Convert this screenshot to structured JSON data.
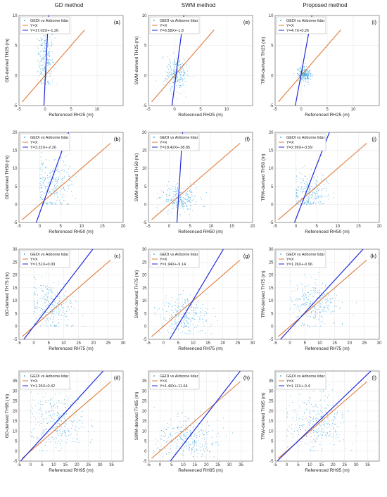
{
  "column_titles": [
    "GD method",
    "SWM method",
    "Proposed method"
  ],
  "legend": {
    "scatter": "GEDI vs Airborne lidar",
    "identity": "Y=X"
  },
  "colors": {
    "points": "#2b9fd8",
    "identity_line": "#e07b39",
    "fit_line": "#1f2bd8",
    "axes": "#555555"
  },
  "chart_data": [
    {
      "type": "scatter",
      "panel": "(a)",
      "xlabel": "Referenced RH25 (m)",
      "ylabel": "GD-derived TH25 (m)",
      "xlim": [
        -5,
        15
      ],
      "ylim": [
        -5,
        10
      ],
      "xticks": [
        -5,
        0,
        5,
        10
      ],
      "yticks": [
        -5,
        0,
        5,
        10
      ],
      "fit_label": "Y=17.02X+-1.26",
      "fit": {
        "slope": 17.02,
        "intercept": -1.26
      },
      "cloud": {
        "cx": 0.1,
        "cy": 2.8,
        "sx": 0.8,
        "sy": 2.8,
        "n": 260,
        "floor": -1.5
      }
    },
    {
      "type": "scatter",
      "panel": "(e)",
      "xlabel": "Referenced RH25 (m)",
      "ylabel": "SWM-derived TH25 (m)",
      "xlim": [
        -5,
        15
      ],
      "ylim": [
        -5,
        10
      ],
      "xticks": [
        -5,
        0,
        5,
        10
      ],
      "yticks": [
        -5,
        0,
        5,
        10
      ],
      "fit_label": "Y=6.58X+-1.8",
      "fit": {
        "slope": 6.58,
        "intercept": -1.8
      },
      "cloud": {
        "cx": 0.4,
        "cy": 0.4,
        "sx": 1.0,
        "sy": 1.5,
        "n": 260,
        "floor": -4
      }
    },
    {
      "type": "scatter",
      "panel": "(i)",
      "xlabel": "Referenced RH25 (m)",
      "ylabel": "TRW-derived TH25 (m)",
      "xlim": [
        -5,
        15
      ],
      "ylim": [
        -5,
        10
      ],
      "xticks": [
        -5,
        0,
        5,
        10
      ],
      "yticks": [
        -5,
        0,
        5,
        10
      ],
      "fit_label": "Y=4.7X+0.26",
      "fit": {
        "slope": 4.7,
        "intercept": 0.26
      },
      "cloud": {
        "cx": 0.6,
        "cy": 0.1,
        "sx": 0.7,
        "sy": 0.6,
        "n": 240,
        "floor": -2
      }
    },
    {
      "type": "scatter",
      "panel": "(b)",
      "xlabel": "Referenced RH50 (m)",
      "ylabel": "GD-derived TH50 (m)",
      "xlim": [
        -5,
        20
      ],
      "ylim": [
        -5,
        20
      ],
      "xticks": [
        -5,
        0,
        5,
        10,
        15,
        20
      ],
      "yticks": [
        -5,
        0,
        5,
        10,
        15,
        20
      ],
      "fit_label": "Y=3.22X+-2.26",
      "fit": {
        "slope": 3.22,
        "intercept": -2.26
      },
      "cloud": {
        "cx": 3.0,
        "cy": 5.5,
        "sx": 2.6,
        "sy": 4.0,
        "n": 260,
        "floor": 0
      }
    },
    {
      "type": "scatter",
      "panel": "(f)",
      "xlabel": "Referenced RH50 (m)",
      "ylabel": "SWM-derived TH50 (m)",
      "xlim": [
        -5,
        20
      ],
      "ylim": [
        -5,
        20
      ],
      "xticks": [
        -5,
        0,
        5,
        10,
        15,
        20
      ],
      "yticks": [
        -5,
        0,
        5,
        10,
        15,
        20
      ],
      "fit_label": "Y=18.42X+-38.85",
      "fit": {
        "slope": 18.42,
        "intercept": -38.85
      },
      "cloud": {
        "cx": 2.5,
        "cy": 1.5,
        "sx": 2.2,
        "sy": 1.8,
        "n": 260,
        "floor": -3
      }
    },
    {
      "type": "scatter",
      "panel": "(j)",
      "xlabel": "Referenced RH50 (m)",
      "ylabel": "TRW-derived TH50 (m)",
      "xlim": [
        -5,
        20
      ],
      "ylim": [
        -5,
        20
      ],
      "xticks": [
        -5,
        0,
        5,
        10,
        15,
        20
      ],
      "yticks": [
        -5,
        0,
        5,
        10,
        15,
        20
      ],
      "fit_label": "Y=2.99X+-3.99",
      "fit": {
        "slope": 2.99,
        "intercept": -3.99
      },
      "cloud": {
        "cx": 3.0,
        "cy": 3.0,
        "sx": 2.3,
        "sy": 2.6,
        "n": 260,
        "floor": 0
      }
    },
    {
      "type": "scatter",
      "panel": "(c)",
      "xlabel": "Referenced RH75 (m)",
      "ylabel": "GD-derived TH75 (m)",
      "xlim": [
        -5,
        30
      ],
      "ylim": [
        -5,
        30
      ],
      "xticks": [
        -5,
        0,
        5,
        10,
        15,
        20,
        25,
        30
      ],
      "yticks": [
        -5,
        0,
        5,
        10,
        15,
        20,
        25,
        30
      ],
      "fit_label": "Y=1.51X+0.09",
      "fit": {
        "slope": 1.51,
        "intercept": 0.09
      },
      "cloud": {
        "cx": 6.0,
        "cy": 8.5,
        "sx": 3.8,
        "sy": 5.0,
        "n": 280,
        "floor": 0
      }
    },
    {
      "type": "scatter",
      "panel": "(g)",
      "xlabel": "Referenced RH75 (m)",
      "ylabel": "SWM-derived TH75 (m)",
      "xlim": [
        -5,
        30
      ],
      "ylim": [
        -5,
        30
      ],
      "xticks": [
        -5,
        0,
        5,
        10,
        15,
        20,
        25,
        30
      ],
      "yticks": [
        -5,
        0,
        5,
        10,
        15,
        20,
        25,
        30
      ],
      "fit_label": "Y=1.94X+-9.14",
      "fit": {
        "slope": 1.94,
        "intercept": -9.14
      },
      "cloud": {
        "cx": 7.0,
        "cy": 4.0,
        "sx": 4.0,
        "sy": 4.0,
        "n": 280,
        "floor": -3
      }
    },
    {
      "type": "scatter",
      "panel": "(k)",
      "xlabel": "Referenced RH75 (m)",
      "ylabel": "TRW-derived TH75 (m)",
      "xlim": [
        -5,
        30
      ],
      "ylim": [
        -5,
        30
      ],
      "xticks": [
        -5,
        0,
        5,
        10,
        15,
        20,
        25,
        30
      ],
      "yticks": [
        -5,
        0,
        5,
        10,
        15,
        20,
        25,
        30
      ],
      "fit_label": "Y=1.26X+-0.96",
      "fit": {
        "slope": 1.26,
        "intercept": -0.96
      },
      "cloud": {
        "cx": 8.0,
        "cy": 9.0,
        "sx": 4.0,
        "sy": 4.6,
        "n": 280,
        "floor": 0
      }
    },
    {
      "type": "scatter",
      "panel": "(d)",
      "xlabel": "Referenced RH95 (m)",
      "ylabel": "GD-derived TH95 (m)",
      "xlim": [
        -5,
        40
      ],
      "ylim": [
        -5,
        40
      ],
      "xticks": [
        -5,
        0,
        5,
        10,
        15,
        20,
        25,
        30,
        35
      ],
      "yticks": [
        -5,
        0,
        5,
        10,
        15,
        20,
        25,
        30,
        35
      ],
      "fit_label": "Y=1.26X+0.42",
      "fit": {
        "slope": 1.26,
        "intercept": 0.42
      },
      "cloud": {
        "cx": 12.0,
        "cy": 14.0,
        "sx": 6.0,
        "sy": 7.0,
        "n": 300,
        "floor": 0
      }
    },
    {
      "type": "scatter",
      "panel": "(h)",
      "xlabel": "Referenced RH95 (m)",
      "ylabel": "SWM-derived TH95 (m)",
      "xlim": [
        -5,
        40
      ],
      "ylim": [
        -5,
        40
      ],
      "xticks": [
        -5,
        0,
        5,
        10,
        15,
        20,
        25,
        30,
        35
      ],
      "yticks": [
        -5,
        0,
        5,
        10,
        15,
        20,
        25,
        30,
        35
      ],
      "fit_label": "Y=1.49X+-11.64",
      "fit": {
        "slope": 1.49,
        "intercept": -11.64
      },
      "cloud": {
        "cx": 12.0,
        "cy": 6.0,
        "sx": 6.5,
        "sy": 5.0,
        "n": 300,
        "floor": -3
      }
    },
    {
      "type": "scatter",
      "panel": "(l)",
      "xlabel": "Referenced RH95 (m)",
      "ylabel": "TRW-derived TH95 (m)",
      "xlim": [
        -5,
        40
      ],
      "ylim": [
        -5,
        40
      ],
      "xticks": [
        -5,
        0,
        5,
        10,
        15,
        20,
        25,
        30,
        35
      ],
      "yticks": [
        -5,
        0,
        5,
        10,
        15,
        20,
        25,
        30,
        35
      ],
      "fit_label": "Y=1.11X+-0.4",
      "fit": {
        "slope": 1.11,
        "intercept": -0.4
      },
      "cloud": {
        "cx": 13.0,
        "cy": 14.0,
        "sx": 6.5,
        "sy": 7.0,
        "n": 300,
        "floor": 0
      }
    }
  ]
}
